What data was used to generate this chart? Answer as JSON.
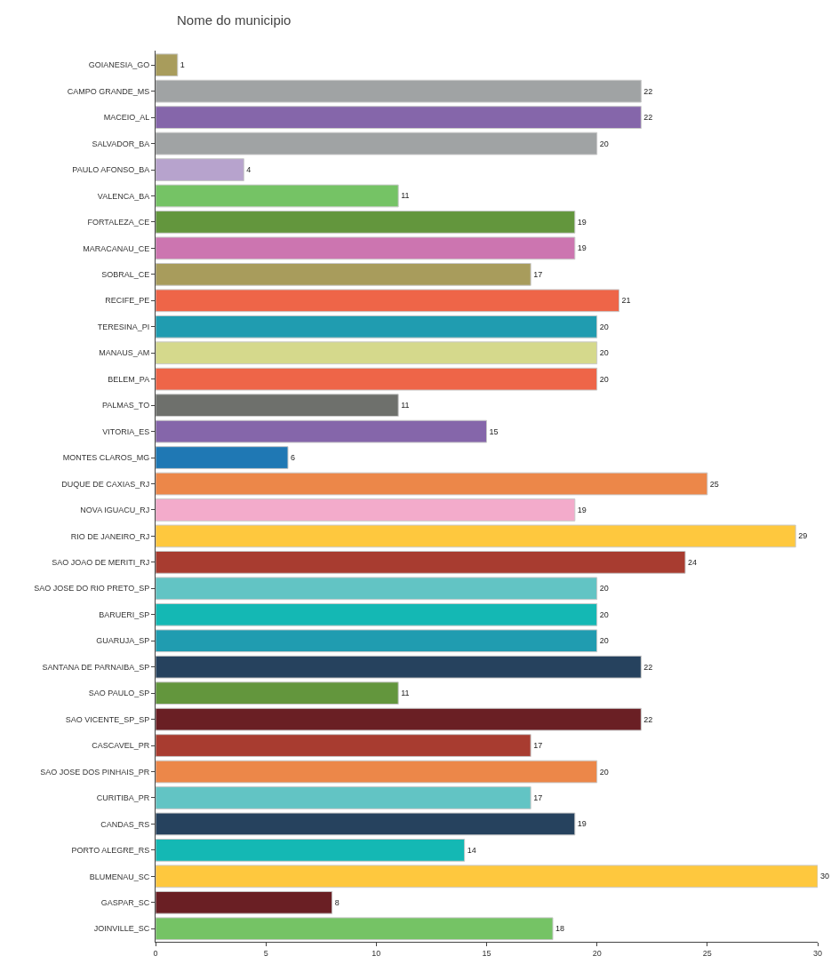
{
  "chart_data": {
    "type": "bar",
    "orientation": "horizontal",
    "ylabel": "Nome do municipio",
    "categories": [
      "GOIANESIA_GO",
      "CAMPO GRANDE_MS",
      "MACEIO_AL",
      "SALVADOR_BA",
      "PAULO AFONSO_BA",
      "VALENCA_BA",
      "FORTALEZA_CE",
      "MARACANAU_CE",
      "SOBRAL_CE",
      "RECIFE_PE",
      "TERESINA_PI",
      "MANAUS_AM",
      "BELEM_PA",
      "PALMAS_TO",
      "VITORIA_ES",
      "MONTES CLAROS_MG",
      "DUQUE DE CAXIAS_RJ",
      "NOVA IGUACU_RJ",
      "RIO DE JANEIRO_RJ",
      "SAO JOAO DE MERITI_RJ",
      "SAO JOSE DO RIO PRETO_SP",
      "BARUERI_SP",
      "GUARUJA_SP",
      "SANTANA DE PARNAIBA_SP",
      "SAO PAULO_SP",
      "SAO VICENTE_SP_SP",
      "CASCAVEL_PR",
      "SAO JOSE DOS PINHAIS_PR",
      "CURITIBA_PR",
      "CANDAS_RS",
      "PORTO ALEGRE_RS",
      "BLUMENAU_SC",
      "GASPAR_SC",
      "JOINVILLE_SC"
    ],
    "values": [
      1,
      22,
      22,
      20,
      4,
      11,
      19,
      19,
      17,
      21,
      20,
      20,
      20,
      11,
      15,
      6,
      25,
      19,
      29,
      24,
      20,
      20,
      20,
      22,
      11,
      22,
      17,
      20,
      17,
      19,
      14,
      30,
      8,
      18
    ],
    "colors": [
      "#a89c5c",
      "#a0a3a4",
      "#8566aa",
      "#a0a3a4",
      "#b7a3cd",
      "#75c365",
      "#63963d",
      "#cc75b0",
      "#a89c5c",
      "#ee6548",
      "#209cb0",
      "#d5d98c",
      "#ee6548",
      "#6e706c",
      "#8566aa",
      "#1f78b4",
      "#ec8749",
      "#f3abcb",
      "#fec83e",
      "#a83c30",
      "#62c4c4",
      "#14b8b4",
      "#209cb0",
      "#26425e",
      "#63963d",
      "#6a1f24",
      "#a83c30",
      "#ec8749",
      "#62c4c4",
      "#26425e",
      "#14b8b4",
      "#fec83e",
      "#6a1f24",
      "#75c365"
    ],
    "xlim": [
      0,
      30
    ],
    "xticks": [
      0,
      5,
      10,
      15,
      20,
      25,
      30
    ],
    "grid": false,
    "data_labels": true
  }
}
